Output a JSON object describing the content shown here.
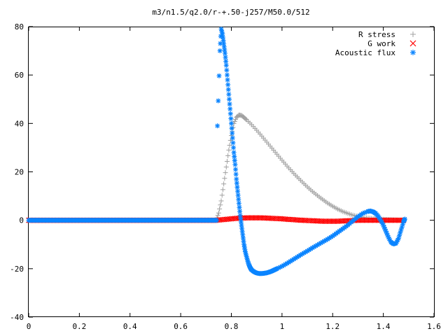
{
  "chart_data": {
    "type": "scatter",
    "title": "m3/n1.5/q2.0/r-+.50-j257/M50.0/512",
    "xlabel": "",
    "ylabel": "",
    "xlim": [
      0,
      1.6
    ],
    "ylim": [
      -40,
      80
    ],
    "x_ticks": [
      "0",
      "0.2",
      "0.4",
      "0.6",
      "0.8",
      "1",
      "1.2",
      "1.4",
      "1.6"
    ],
    "y_ticks": [
      "80",
      "60",
      "40",
      "20",
      "0",
      "-20",
      "-40"
    ],
    "grid": false,
    "legend_position": "top-right",
    "series": [
      {
        "name": "R stress",
        "marker": "plus",
        "color": "#a0a0a0",
        "x": [
          0.74,
          0.75,
          0.76,
          0.77,
          0.78,
          0.79,
          0.8,
          0.81,
          0.82,
          0.83,
          0.84,
          0.85,
          0.86,
          0.88,
          0.9,
          0.92,
          0.94,
          0.96,
          0.98,
          1.0,
          1.02,
          1.04,
          1.06,
          1.08,
          1.1,
          1.12,
          1.14,
          1.16,
          1.18,
          1.2,
          1.22,
          1.24,
          1.26,
          1.28,
          1.3,
          1.32,
          1.34,
          1.36,
          1.38,
          1.4,
          1.42,
          1.44,
          1.46,
          1.48
        ],
        "y": [
          0,
          3,
          8,
          15,
          22,
          29,
          35,
          40,
          42.5,
          43.5,
          43.3,
          42.5,
          41.5,
          39.5,
          37.2,
          34.8,
          32.3,
          29.8,
          27.3,
          24.8,
          22.4,
          20.1,
          17.9,
          15.8,
          13.8,
          11.9,
          10.2,
          8.6,
          7.1,
          5.8,
          4.6,
          3.6,
          2.8,
          2.1,
          1.6,
          1.2,
          0.9,
          0.7,
          0.5,
          0.4,
          0.3,
          0.2,
          0.1,
          0.1
        ]
      },
      {
        "name": "G work",
        "marker": "cross",
        "color": "#ff0000",
        "x": [
          0.74,
          0.76,
          0.78,
          0.8,
          0.82,
          0.84,
          0.86,
          0.88,
          0.9,
          0.92,
          0.94,
          0.96,
          0.98,
          1.0,
          1.02,
          1.04,
          1.06,
          1.08,
          1.1,
          1.12,
          1.14,
          1.16,
          1.18,
          1.2,
          1.22,
          1.24,
          1.26,
          1.28,
          1.3,
          1.32,
          1.34,
          1.36,
          1.38,
          1.4,
          1.42,
          1.44,
          1.46,
          1.48
        ],
        "y": [
          0,
          0.2,
          0.4,
          0.6,
          0.8,
          0.9,
          1.0,
          1.0,
          1.0,
          1.0,
          0.9,
          0.8,
          0.7,
          0.6,
          0.4,
          0.3,
          0.1,
          0,
          -0.1,
          -0.2,
          -0.3,
          -0.4,
          -0.4,
          -0.4,
          -0.4,
          -0.3,
          -0.2,
          -0.1,
          0,
          0,
          0,
          0,
          0,
          0,
          0,
          0,
          0,
          0
        ]
      },
      {
        "name": "Acoustic flux",
        "marker": "star",
        "color": "#0a84ff",
        "x": [
          0.745,
          0.755,
          0.76,
          0.765,
          0.77,
          0.775,
          0.78,
          0.785,
          0.79,
          0.795,
          0.8,
          0.805,
          0.81,
          0.815,
          0.82,
          0.825,
          0.83,
          0.835,
          0.84,
          0.845,
          0.85,
          0.855,
          0.86,
          0.865,
          0.87,
          0.875,
          0.88,
          0.89,
          0.9,
          0.91,
          0.92,
          0.93,
          0.94,
          0.95,
          0.96,
          0.97,
          0.98,
          1.0,
          1.02,
          1.04,
          1.06,
          1.08,
          1.1,
          1.12,
          1.14,
          1.16,
          1.18,
          1.2,
          1.22,
          1.24,
          1.26,
          1.28,
          1.3,
          1.32,
          1.34,
          1.35,
          1.36,
          1.37,
          1.38,
          1.39,
          1.4,
          1.41,
          1.42,
          1.43,
          1.44,
          1.45,
          1.46,
          1.47,
          1.48,
          1.485
        ],
        "y": [
          39,
          70,
          79,
          77,
          73,
          69,
          64,
          58,
          52,
          46,
          40,
          34,
          28,
          23,
          17,
          12,
          7,
          2,
          -2,
          -6,
          -10,
          -13,
          -15,
          -17,
          -18.5,
          -19.7,
          -20.5,
          -21.3,
          -21.8,
          -22,
          -22,
          -21.9,
          -21.7,
          -21.4,
          -21,
          -20.5,
          -20,
          -19,
          -17.8,
          -16.5,
          -15.2,
          -13.9,
          -12.7,
          -11.4,
          -10.2,
          -9,
          -7.8,
          -6.5,
          -5,
          -3.5,
          -2,
          -0.2,
          1.5,
          2.9,
          3.7,
          3.8,
          3.5,
          2.8,
          1.6,
          0,
          -2,
          -4.5,
          -7,
          -9,
          -9.8,
          -9.5,
          -7.5,
          -4,
          -0.5,
          0.5
        ]
      }
    ]
  }
}
